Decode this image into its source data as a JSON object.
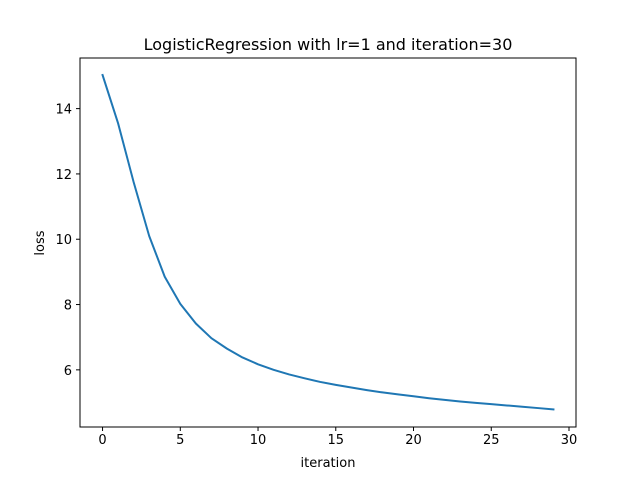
{
  "chart_data": {
    "type": "line",
    "title": "LogisticRegression with lr=1 and iteration=30",
    "xlabel": "iteration",
    "ylabel": "loss",
    "xlim": [
      -1.45,
      30.45
    ],
    "ylim": [
      4.25,
      15.55
    ],
    "xticks": [
      0,
      5,
      10,
      15,
      20,
      25,
      30
    ],
    "yticks": [
      6,
      8,
      10,
      12,
      14
    ],
    "grid": false,
    "line_color": "#1f77b4",
    "series": [
      {
        "x": [
          0,
          1,
          2,
          3,
          4,
          5,
          6,
          7,
          8,
          9,
          10,
          11,
          12,
          13,
          14,
          15,
          16,
          17,
          18,
          19,
          20,
          21,
          22,
          23,
          24,
          25,
          26,
          27,
          28,
          29
        ],
        "values": [
          15.03,
          13.55,
          11.75,
          10.1,
          8.85,
          8.02,
          7.42,
          6.97,
          6.65,
          6.38,
          6.17,
          6.0,
          5.86,
          5.74,
          5.63,
          5.54,
          5.46,
          5.38,
          5.31,
          5.25,
          5.19,
          5.13,
          5.08,
          5.03,
          4.99,
          4.95,
          4.91,
          4.87,
          4.83,
          4.79
        ]
      }
    ]
  }
}
